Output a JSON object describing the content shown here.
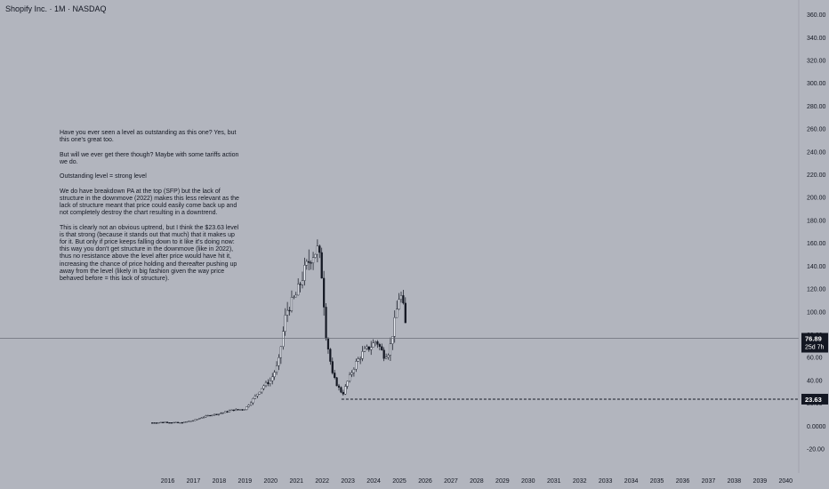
{
  "header": {
    "title": "Shopify Inc. · 1M · NASDAQ"
  },
  "note": {
    "paragraphs": [
      "Have you ever seen a level as outstanding as this one? Yes, but this one's great too.",
      "But will we ever get there though? Maybe with some tariffs action we do.",
      "Outstanding level = strong level",
      "We do have breakdown PA at the top (SFP) but the lack of structure in the downmove (2022) makes this less relevant as the lack of structure meant that price could easily come back up and not completely destroy the chart resulting in a downtrend.",
      "This is clearly not an obvious uptrend, but I think the $23.63 level is that strong (because it stands out that much) that it makes up for it. But only if price keeps falling down to it like it's doing now: this way you don't get structure in the downmove (like in 2022), thus no resistance above the level after price would have hit it, increasing the chance of price holding and thereafter pushing up away from the level (likely in big fashion given the way price behaved before = this lack of structure)."
    ]
  },
  "chart_data": {
    "type": "candlestick",
    "title": "Shopify Inc. · 1M · NASDAQ",
    "x_range": [
      2015,
      2041
    ],
    "ylim": [
      -30,
      365
    ],
    "y_ticks": [
      "360.00",
      "340.00",
      "320.00",
      "300.00",
      "280.00",
      "260.00",
      "240.00",
      "220.00",
      "200.00",
      "180.00",
      "160.00",
      "140.00",
      "120.00",
      "100.00",
      "80.00",
      "60.00",
      "40.00",
      "20.00",
      "0.0000",
      "-20.00"
    ],
    "y_tick_values": [
      360,
      340,
      320,
      300,
      280,
      260,
      240,
      220,
      200,
      180,
      160,
      140,
      120,
      100,
      80,
      60,
      40,
      20,
      0,
      -20
    ],
    "x_ticks": [
      "2016",
      "2017",
      "2018",
      "2019",
      "2020",
      "2021",
      "2022",
      "2023",
      "2024",
      "2025",
      "2026",
      "2027",
      "2028",
      "2029",
      "2030",
      "2031",
      "2032",
      "2033",
      "2034",
      "2035",
      "2036",
      "2037",
      "2038",
      "2039",
      "2040"
    ],
    "x_tick_values": [
      2016,
      2017,
      2018,
      2019,
      2020,
      2021,
      2022,
      2023,
      2024,
      2025,
      2026,
      2027,
      2028,
      2029,
      2030,
      2031,
      2032,
      2033,
      2034,
      2035,
      2036,
      2037,
      2038,
      2039,
      2040
    ],
    "current_price": {
      "label": "76.89",
      "value": 76.89,
      "countdown": "25d 7h"
    },
    "support_level": {
      "label": "23.63",
      "value": 23.63,
      "start_year": 2022.75
    },
    "price_path": [
      [
        2015.4,
        3
      ],
      [
        2015.9,
        3.5
      ],
      [
        2016.5,
        3
      ],
      [
        2017.0,
        5
      ],
      [
        2017.5,
        9
      ],
      [
        2018.0,
        11
      ],
      [
        2018.5,
        14
      ],
      [
        2019.0,
        15
      ],
      [
        2019.4,
        26
      ],
      [
        2019.7,
        35
      ],
      [
        2020.0,
        40
      ],
      [
        2020.3,
        55
      ],
      [
        2020.6,
        100
      ],
      [
        2021.0,
        115
      ],
      [
        2021.3,
        135
      ],
      [
        2021.6,
        150
      ],
      [
        2021.85,
        155
      ],
      [
        2022.0,
        130
      ],
      [
        2022.15,
        80
      ],
      [
        2022.4,
        45
      ],
      [
        2022.6,
        35
      ],
      [
        2022.8,
        28
      ],
      [
        2023.0,
        40
      ],
      [
        2023.3,
        55
      ],
      [
        2023.6,
        65
      ],
      [
        2023.9,
        70
      ],
      [
        2024.1,
        75
      ],
      [
        2024.4,
        62
      ],
      [
        2024.6,
        65
      ],
      [
        2024.85,
        95
      ],
      [
        2025.0,
        115
      ],
      [
        2025.1,
        112
      ],
      [
        2025.2,
        95
      ],
      [
        2025.3,
        76.89
      ]
    ],
    "grid": false
  }
}
